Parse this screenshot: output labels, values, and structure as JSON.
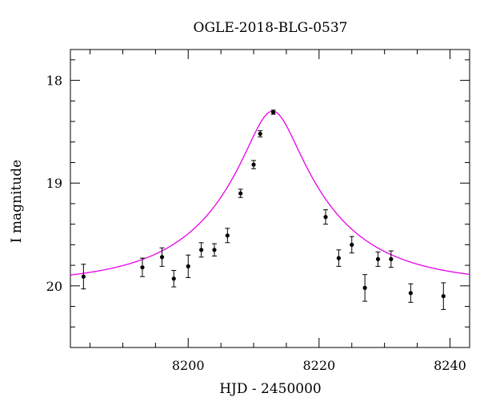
{
  "chart_data": {
    "type": "scatter",
    "title": "OGLE-2018-BLG-0537",
    "xlabel": "HJD - 2450000",
    "ylabel": "I magnitude",
    "xlim": [
      8182,
      8243
    ],
    "ylim": [
      20.6,
      17.7
    ],
    "y_inverted": true,
    "x_ticks": [
      8200,
      8220,
      8240
    ],
    "y_ticks": [
      18,
      19,
      20
    ],
    "x_minor_step": 5,
    "y_minor_step": 0.2,
    "grid": false,
    "series": [
      {
        "kind": "points-with-errorbars",
        "color": "#000000",
        "points": [
          {
            "x": 8184.0,
            "y": 19.91,
            "err": 0.12
          },
          {
            "x": 8193.0,
            "y": 19.82,
            "err": 0.09
          },
          {
            "x": 8196.0,
            "y": 19.72,
            "err": 0.09
          },
          {
            "x": 8197.8,
            "y": 19.93,
            "err": 0.08
          },
          {
            "x": 8200.0,
            "y": 19.81,
            "err": 0.11
          },
          {
            "x": 8202.0,
            "y": 19.65,
            "err": 0.07
          },
          {
            "x": 8204.0,
            "y": 19.65,
            "err": 0.06
          },
          {
            "x": 8206.0,
            "y": 19.51,
            "err": 0.07
          },
          {
            "x": 8208.0,
            "y": 19.1,
            "err": 0.04
          },
          {
            "x": 8210.0,
            "y": 18.82,
            "err": 0.04
          },
          {
            "x": 8211.0,
            "y": 18.52,
            "err": 0.03
          },
          {
            "x": 8213.0,
            "y": 18.31,
            "err": 0.02
          },
          {
            "x": 8221.0,
            "y": 19.33,
            "err": 0.07
          },
          {
            "x": 8223.0,
            "y": 19.73,
            "err": 0.08
          },
          {
            "x": 8225.0,
            "y": 19.6,
            "err": 0.08
          },
          {
            "x": 8227.0,
            "y": 20.02,
            "err": 0.13
          },
          {
            "x": 8229.0,
            "y": 19.74,
            "err": 0.07
          },
          {
            "x": 8231.0,
            "y": 19.74,
            "err": 0.08
          },
          {
            "x": 8234.0,
            "y": 20.07,
            "err": 0.09
          },
          {
            "x": 8239.0,
            "y": 20.1,
            "err": 0.13
          }
        ]
      },
      {
        "kind": "model-curve",
        "color": "#e800e8",
        "model": {
          "t0": 8212.9,
          "u0": 0.22,
          "tE": 17.2,
          "baseline_mag": 19.98,
          "peak_mag": 18.3
        }
      }
    ]
  }
}
